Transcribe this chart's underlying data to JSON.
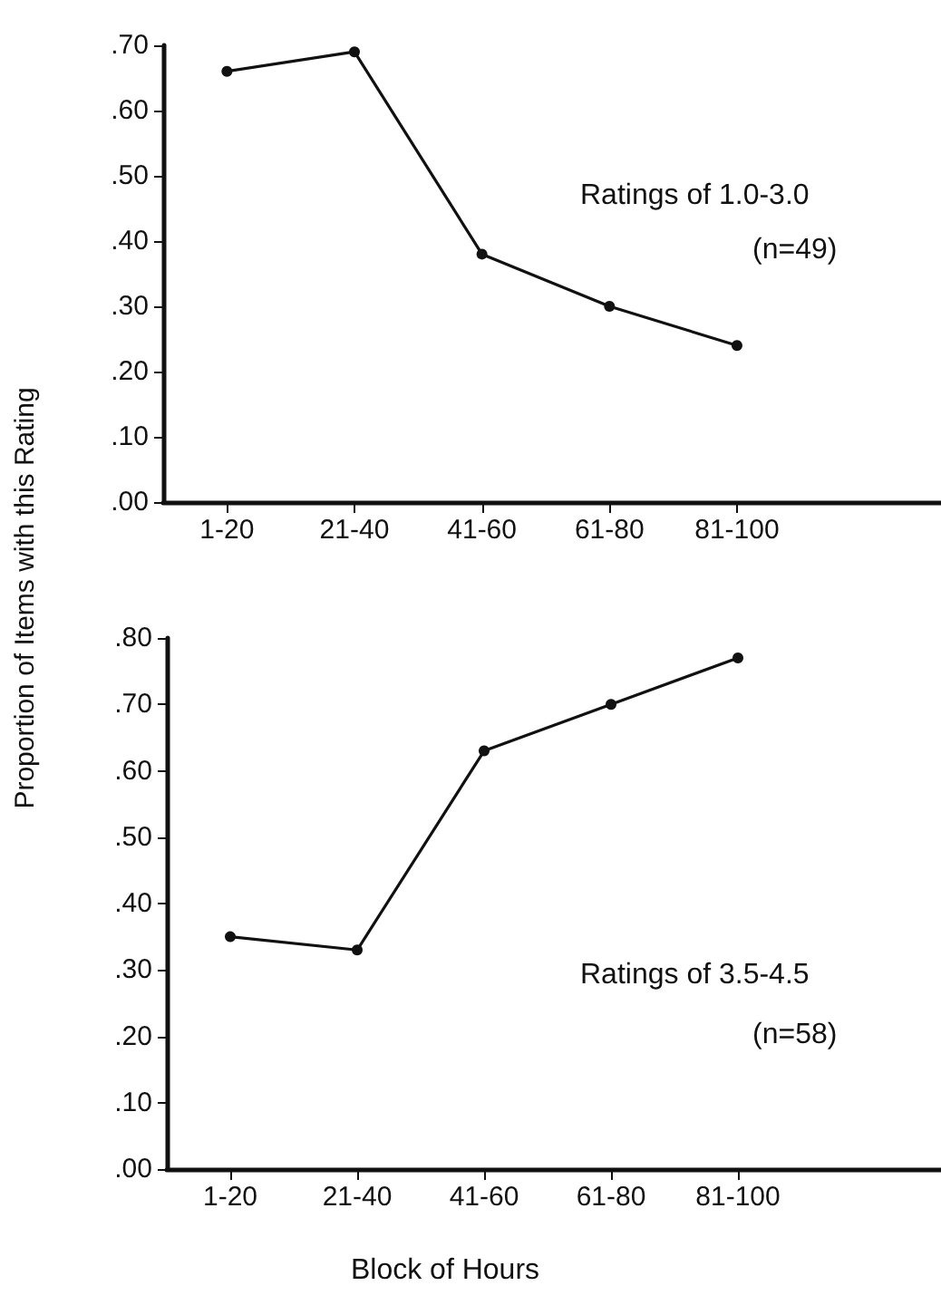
{
  "chart_data": [
    {
      "type": "line",
      "categories": [
        "1-20",
        "21-40",
        "41-60",
        "61-80",
        "81-100"
      ],
      "ylabel": "Proportion of Items with this Rating",
      "annotations": [
        "Ratings of 1.0-3.0",
        "(n=49)"
      ],
      "series": [
        {
          "color": "#111111",
          "values": [
            0.66,
            0.69,
            0.38,
            0.3,
            0.24
          ]
        }
      ],
      "ylim": [
        0,
        0.7
      ],
      "yticks": [
        {
          "value": 0,
          "label": ".00"
        },
        {
          "value": 0.1,
          "label": ".10"
        },
        {
          "value": 0.2,
          "label": ".20"
        },
        {
          "value": 0.3,
          "label": ".30"
        },
        {
          "value": 0.4,
          "label": ".40"
        },
        {
          "value": 0.5,
          "label": ".50"
        },
        {
          "value": 0.6,
          "label": ".60"
        },
        {
          "value": 0.7,
          "label": ".70"
        }
      ],
      "grid": false,
      "marker": "circle",
      "line_style": "solid"
    },
    {
      "type": "line",
      "categories": [
        "1-20",
        "21-40",
        "41-60",
        "61-80",
        "81-100"
      ],
      "xlabel": "Block of Hours",
      "annotations": [
        "Ratings of 3.5-4.5",
        "(n=58)"
      ],
      "series": [
        {
          "color": "#111111",
          "values": [
            0.35,
            0.33,
            0.63,
            0.7,
            0.77
          ]
        }
      ],
      "ylim": [
        0,
        0.8
      ],
      "yticks": [
        {
          "value": 0,
          "label": ".00"
        },
        {
          "value": 0.1,
          "label": ".10"
        },
        {
          "value": 0.2,
          "label": ".20"
        },
        {
          "value": 0.3,
          "label": ".30"
        },
        {
          "value": 0.4,
          "label": ".40"
        },
        {
          "value": 0.5,
          "label": ".50"
        },
        {
          "value": 0.6,
          "label": ".60"
        },
        {
          "value": 0.7,
          "label": ".70"
        },
        {
          "value": 0.8,
          "label": ".80"
        }
      ],
      "grid": false,
      "marker": "circle",
      "line_style": "solid"
    }
  ]
}
